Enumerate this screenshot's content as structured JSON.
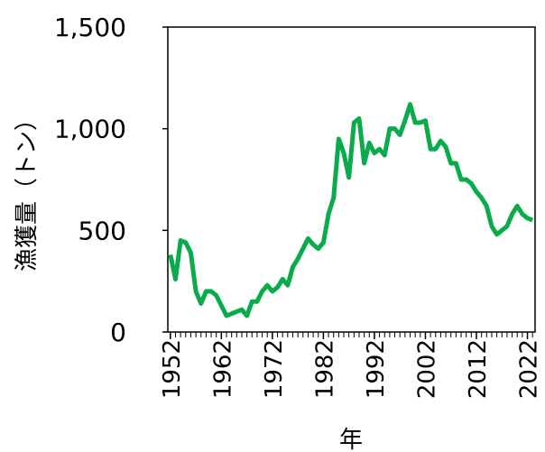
{
  "chart_data": {
    "type": "line",
    "x_label": "年",
    "y_label": "漁獲量（トン）",
    "x": [
      1952,
      1953,
      1954,
      1955,
      1956,
      1957,
      1958,
      1959,
      1960,
      1961,
      1962,
      1963,
      1964,
      1965,
      1966,
      1967,
      1968,
      1969,
      1970,
      1971,
      1972,
      1973,
      1974,
      1975,
      1976,
      1977,
      1978,
      1979,
      1980,
      1981,
      1982,
      1983,
      1984,
      1985,
      1986,
      1987,
      1988,
      1989,
      1990,
      1991,
      1992,
      1993,
      1994,
      1995,
      1996,
      1997,
      1998,
      1999,
      2000,
      2001,
      2002,
      2003,
      2004,
      2005,
      2006,
      2007,
      2008,
      2009,
      2010,
      2011,
      2012,
      2013,
      2014,
      2015,
      2016,
      2017,
      2018,
      2019,
      2020,
      2021,
      2022,
      2023
    ],
    "series": [
      {
        "color": "#0aab4b",
        "values": [
          380,
          260,
          450,
          440,
          390,
          200,
          140,
          200,
          200,
          180,
          130,
          80,
          90,
          100,
          110,
          80,
          150,
          150,
          200,
          230,
          200,
          220,
          260,
          230,
          320,
          360,
          410,
          460,
          430,
          410,
          440,
          580,
          660,
          950,
          880,
          760,
          1030,
          1050,
          830,
          930,
          880,
          900,
          870,
          1000,
          1000,
          970,
          1040,
          1120,
          1030,
          1030,
          1040,
          900,
          900,
          940,
          910,
          830,
          830,
          750,
          750,
          730,
          690,
          660,
          620,
          520,
          480,
          500,
          520,
          580,
          620,
          580,
          560,
          550
        ]
      }
    ],
    "xlim": [
      1951.5,
      2023.5
    ],
    "xticks": [
      1952,
      1962,
      1972,
      1982,
      1992,
      2002,
      2012,
      2022
    ],
    "ylim": [
      0,
      1500
    ],
    "yticks": [
      0,
      {
        "value": 500,
        "label": "500"
      },
      {
        "value": 1000,
        "label": "1,000"
      },
      {
        "value": 1500,
        "label": "1,500"
      }
    ],
    "grid": false
  }
}
